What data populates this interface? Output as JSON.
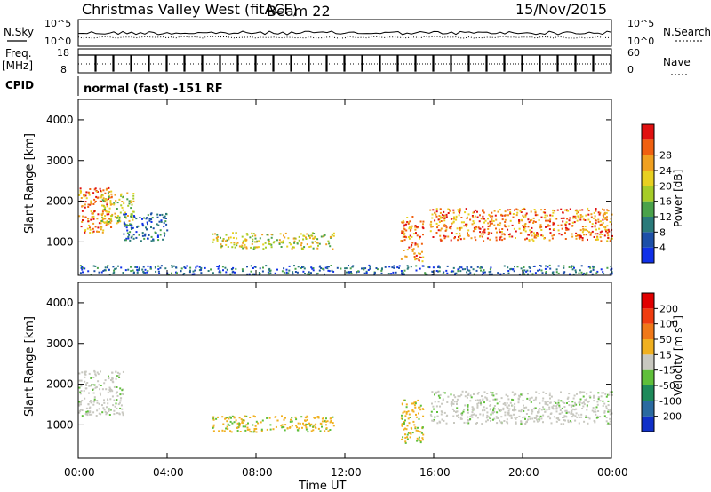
{
  "header": {
    "station": "Christmas Valley West (fitACF)",
    "beam": "Beam 22",
    "date": "15/Nov/2015"
  },
  "strip_labels": {
    "nsky": "N.Sky",
    "nsearch": "N.Search",
    "freq": "Freq.",
    "freq_unit": "[MHz]",
    "nave": "Nave",
    "cpid": "CPID",
    "cpid_value": "normal (fast) -151 RF"
  },
  "strip_ticks": {
    "noise_left": [
      "10^5",
      "10^0"
    ],
    "noise_right": [
      "10^5",
      "10^0"
    ],
    "freq_left": [
      "18",
      "8"
    ],
    "nave_right": [
      "60",
      "0"
    ]
  },
  "chart_data": [
    {
      "type": "heatmap",
      "panel": "power",
      "xlabel": "Time UT",
      "ylabel": "Slant Range [km]",
      "xlim": [
        0,
        24
      ],
      "ylim": [
        180,
        4500
      ],
      "x_ticks": [
        "00:00",
        "04:00",
        "08:00",
        "12:00",
        "16:00",
        "20:00",
        "00:00"
      ],
      "y_ticks": [
        "1000",
        "2000",
        "3000",
        "4000"
      ],
      "colorbar": {
        "label": "Power [dB]",
        "ticks": [
          "4",
          "8",
          "12",
          "16",
          "20",
          "24",
          "28"
        ],
        "colors": [
          "#1030e8",
          "#1c4fa8",
          "#2a7a7a",
          "#4aa24a",
          "#a6cc28",
          "#e8d020",
          "#f0a020",
          "#f06010",
          "#e01010"
        ]
      },
      "echo_regions": [
        {
          "t0": 0.0,
          "t1": 1.5,
          "r0": 1200,
          "r1": 2300,
          "level": "strong"
        },
        {
          "t0": 1.0,
          "t1": 2.5,
          "r0": 1400,
          "r1": 2200,
          "level": "moderate"
        },
        {
          "t0": 2.0,
          "t1": 4.0,
          "r0": 1000,
          "r1": 1700,
          "level": "weak"
        },
        {
          "t0": 6.0,
          "t1": 11.5,
          "r0": 800,
          "r1": 1200,
          "level": "moderate"
        },
        {
          "t0": 14.5,
          "t1": 15.5,
          "r0": 500,
          "r1": 1600,
          "level": "strong"
        },
        {
          "t0": 15.8,
          "t1": 24.0,
          "r0": 1000,
          "r1": 1800,
          "level": "strong"
        },
        {
          "t0": 0.0,
          "t1": 24.0,
          "r0": 180,
          "r1": 400,
          "level": "weak"
        }
      ]
    },
    {
      "type": "heatmap",
      "panel": "velocity",
      "xlabel": "Time UT",
      "ylabel": "Slant Range [km]",
      "xlim": [
        0,
        24
      ],
      "ylim": [
        180,
        4500
      ],
      "x_ticks": [
        "00:00",
        "04:00",
        "08:00",
        "12:00",
        "16:00",
        "20:00",
        "00:00"
      ],
      "y_ticks": [
        "1000",
        "2000",
        "3000",
        "4000"
      ],
      "colorbar": {
        "label": "Velocity [m s",
        "label_exp": "-1",
        "label_end": "]",
        "ticks": [
          "200",
          "100",
          "50",
          "15",
          "-15",
          "-50",
          "-100",
          "-200"
        ],
        "colors": [
          "#1030c8",
          "#2a6aa0",
          "#1e8a5a",
          "#5fbf3a",
          "#c8c8c0",
          "#f0b020",
          "#f07818",
          "#f03c10",
          "#e00000"
        ]
      },
      "echo_regions": [
        {
          "t0": 0.0,
          "t1": 2.0,
          "r0": 1200,
          "r1": 2300,
          "level": "ground"
        },
        {
          "t0": 6.0,
          "t1": 11.5,
          "r0": 800,
          "r1": 1200,
          "level": "negative"
        },
        {
          "t0": 14.5,
          "t1": 15.5,
          "r0": 500,
          "r1": 1600,
          "level": "negative"
        },
        {
          "t0": 15.8,
          "t1": 24.0,
          "r0": 1000,
          "r1": 1800,
          "level": "ground"
        }
      ]
    }
  ]
}
